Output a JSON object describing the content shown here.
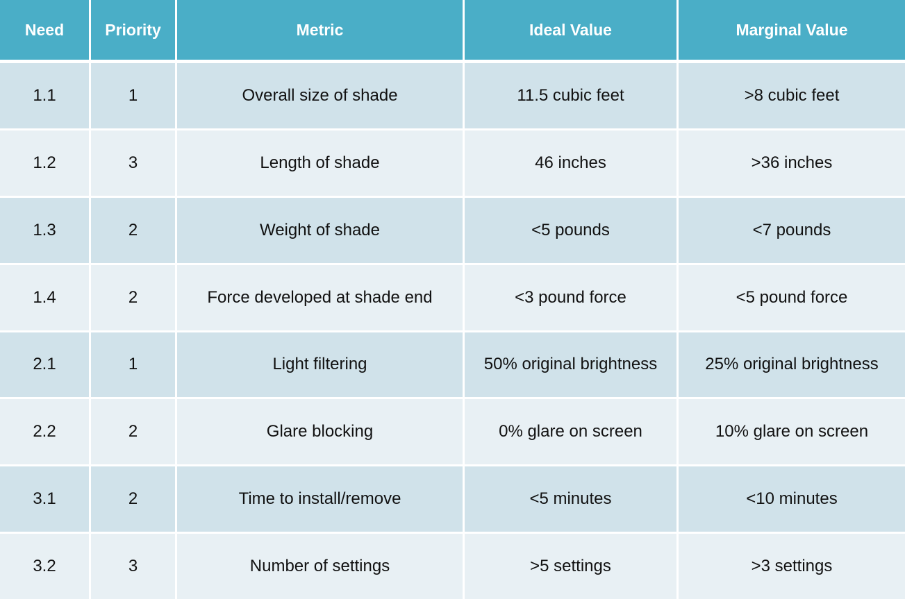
{
  "table": {
    "headers": [
      "Need",
      "Priority",
      "Metric",
      "Ideal Value",
      "Marginal Value"
    ],
    "rows": [
      [
        "1.1",
        "1",
        "Overall size of shade",
        "11.5 cubic feet",
        ">8 cubic feet"
      ],
      [
        "1.2",
        "3",
        "Length of shade",
        "46 inches",
        ">36 inches"
      ],
      [
        "1.3",
        "2",
        "Weight of shade",
        "<5 pounds",
        "<7 pounds"
      ],
      [
        "1.4",
        "2",
        "Force developed at shade end",
        "<3 pound force",
        "<5 pound force"
      ],
      [
        "2.1",
        "1",
        "Light filtering",
        "50% original brightness",
        "25% original brightness"
      ],
      [
        "2.2",
        "2",
        "Glare blocking",
        "0% glare on screen",
        "10% glare on screen"
      ],
      [
        "3.1",
        "2",
        "Time to install/remove",
        "<5 minutes",
        "<10 minutes"
      ],
      [
        "3.2",
        "3",
        "Number of settings",
        ">5 settings",
        ">3 settings"
      ]
    ]
  },
  "colors": {
    "header_bg": "#4aaec7",
    "header_text": "#ffffff",
    "row_odd_bg": "#d0e2ea",
    "row_even_bg": "#e8f0f4",
    "cell_text": "#111111"
  }
}
